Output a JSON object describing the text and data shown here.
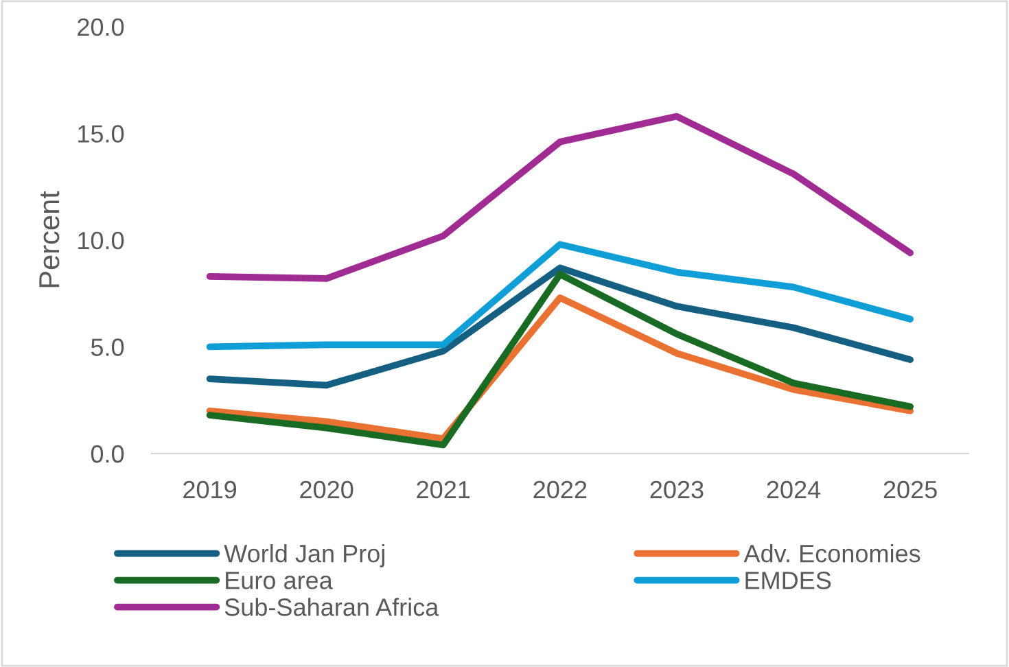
{
  "chart_data": {
    "type": "line",
    "ylabel": "Percent",
    "categories": [
      "2019",
      "2020",
      "2021",
      "2022",
      "2023",
      "2024",
      "2025"
    ],
    "ylim": [
      0,
      20
    ],
    "yticks": [
      {
        "value": 0,
        "label": "0.0"
      },
      {
        "value": 5,
        "label": "5.0"
      },
      {
        "value": 10,
        "label": "10.0"
      },
      {
        "value": 15,
        "label": "15.0"
      },
      {
        "value": 20,
        "label": "20.0"
      }
    ],
    "grid": false,
    "legend": "bottom",
    "marker": "none",
    "line_style": "solid",
    "series": [
      {
        "name": "World Jan Proj",
        "color": "#156082",
        "values": [
          3.5,
          3.2,
          4.8,
          8.7,
          6.9,
          5.9,
          4.4
        ]
      },
      {
        "name": "Adv. Economies",
        "color": "#e97132",
        "values": [
          2.0,
          1.5,
          0.7,
          7.3,
          4.7,
          3.0,
          2.0
        ]
      },
      {
        "name": "Euro area",
        "color": "#196b24",
        "values": [
          1.8,
          1.2,
          0.4,
          8.4,
          5.6,
          3.3,
          2.2
        ]
      },
      {
        "name": "EMDES",
        "color": "#0f9ed5",
        "values": [
          5.0,
          5.1,
          5.1,
          9.8,
          8.5,
          7.8,
          6.3
        ]
      },
      {
        "name": "Sub-Saharan Africa",
        "color": "#a02b93",
        "values": [
          8.3,
          8.2,
          10.2,
          14.6,
          15.8,
          13.1,
          9.4
        ]
      }
    ]
  }
}
